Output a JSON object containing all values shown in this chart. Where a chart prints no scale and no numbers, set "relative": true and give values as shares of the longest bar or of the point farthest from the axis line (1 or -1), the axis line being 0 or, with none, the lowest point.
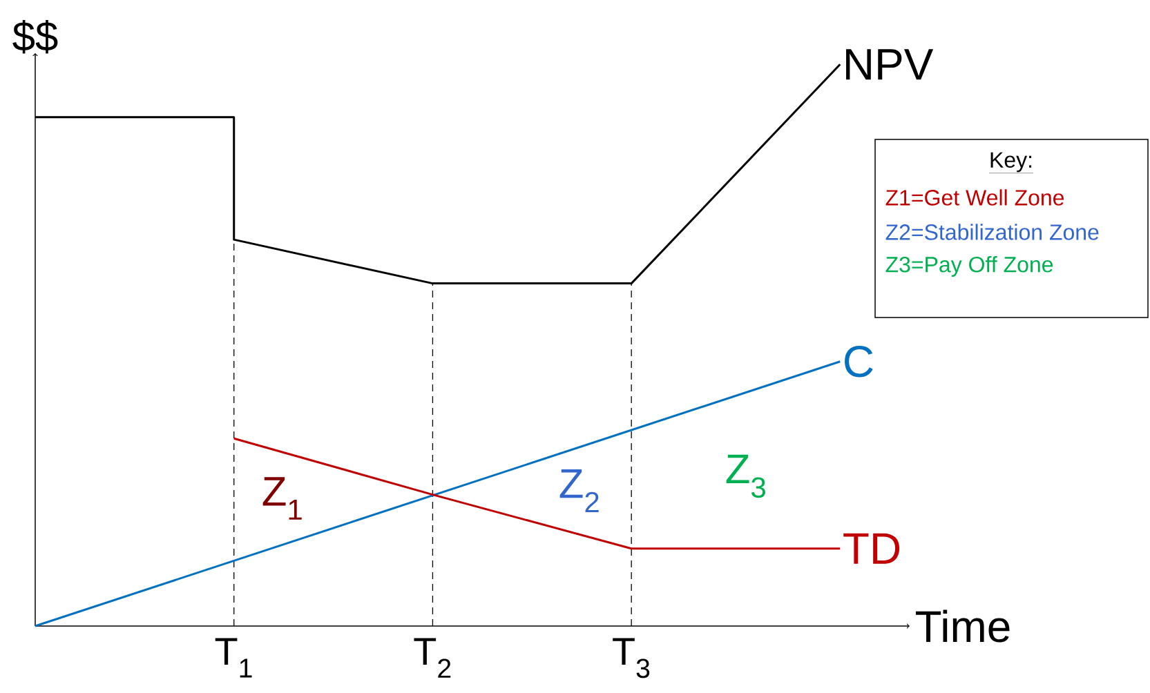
{
  "chart_data": {
    "type": "line",
    "relative": true,
    "xlabel": "Time",
    "ylabel": "$$",
    "xlim": [
      0,
      4.4
    ],
    "xticks": [
      {
        "value": 1,
        "label": "T$_{1}$"
      },
      {
        "value": 2,
        "label": "T$_{2}$"
      },
      {
        "value": 3,
        "label": "T$_{3}$"
      }
    ],
    "series": [
      {
        "name": "NPV",
        "color": "#000000",
        "x": [
          0,
          1,
          1,
          2,
          3,
          4.05
        ],
        "values": [
          0.906,
          0.906,
          0.688,
          0.61,
          0.61,
          1.0
        ]
      },
      {
        "name": "C",
        "color": "#0070c0",
        "x": [
          0,
          4.05
        ],
        "values": [
          0,
          0.471
        ]
      },
      {
        "name": "TD",
        "color": "#c00000",
        "x": [
          1,
          2,
          3,
          4.05
        ],
        "values": [
          0.334,
          0.234,
          0.138,
          0.138
        ]
      }
    ],
    "ref_lines": [
      {
        "axis": "x",
        "value": 1,
        "line_style": "dashed"
      },
      {
        "axis": "x",
        "value": 2,
        "line_style": "dashed"
      },
      {
        "axis": "x",
        "value": 3,
        "line_style": "dashed"
      }
    ],
    "annotations": [
      "Z$_{1}$",
      "Z$_{2}$",
      "Z$_{3}$",
      "Key:",
      "Z1=Get Well Zone",
      "Z2=Stabilization Zone",
      "Z3=Pay Off Zone"
    ]
  }
}
